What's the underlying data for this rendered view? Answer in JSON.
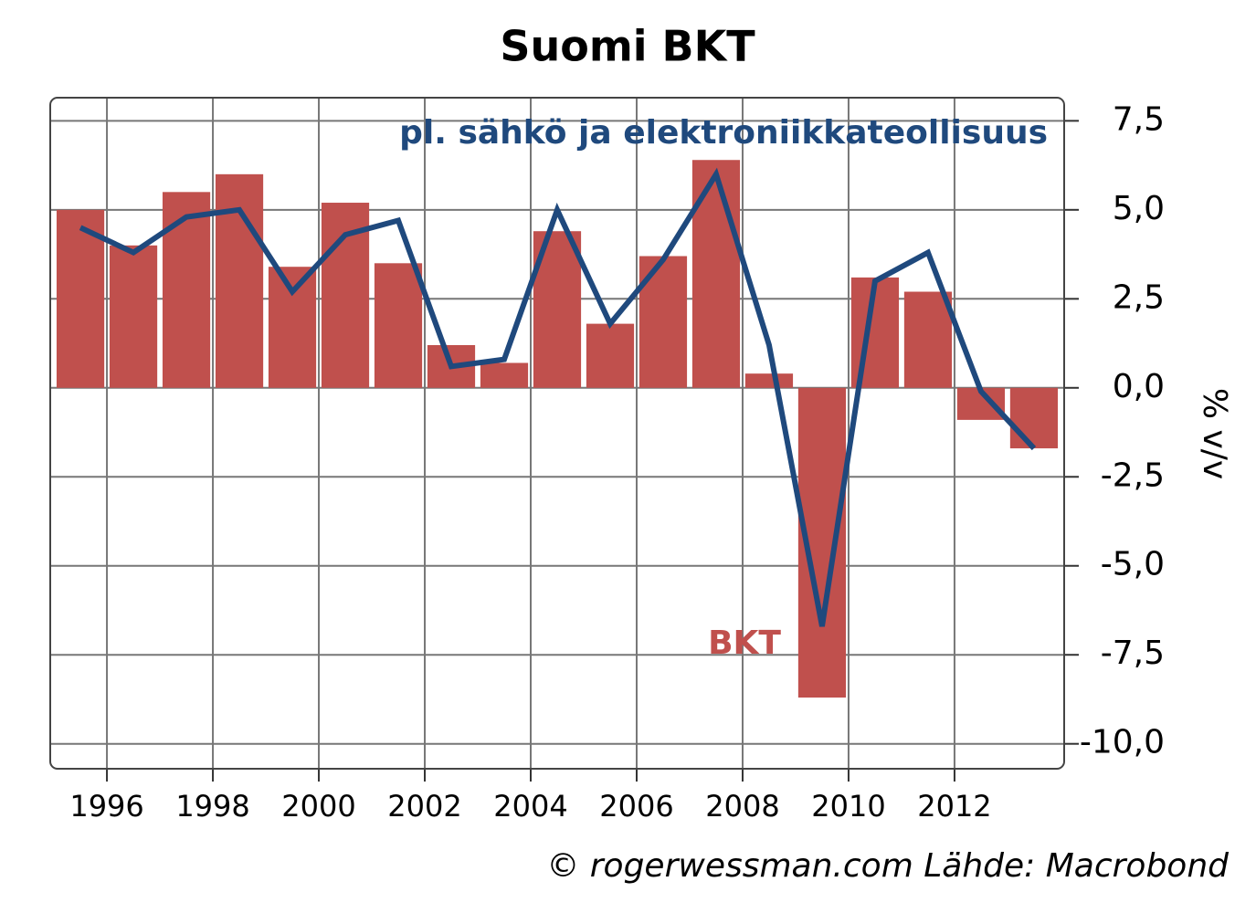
{
  "chart_data": {
    "type": "bar",
    "title": "Suomi BKT",
    "y_label": "% v/v",
    "source": "© rogerwessman.com Lähde: Macrobond",
    "x": [
      1995.5,
      1996.5,
      1997.5,
      1998.5,
      1999.5,
      2000.5,
      2001.5,
      2002.5,
      2003.5,
      2004.5,
      2005.5,
      2006.5,
      2007.5,
      2008.5,
      2009.5,
      2010.5,
      2011.5,
      2012.5,
      2013.5
    ],
    "series": [
      {
        "name": "BKT",
        "type": "bar",
        "color": "#c0504d",
        "values": [
          5.0,
          4.0,
          5.5,
          6.0,
          3.4,
          5.2,
          3.5,
          1.2,
          0.7,
          4.4,
          1.8,
          3.7,
          6.4,
          0.4,
          -8.7,
          3.1,
          2.7,
          -0.9,
          -1.7
        ]
      },
      {
        "name": "pl. sähkö ja elektroniikkateollisuus",
        "type": "line",
        "color": "#1f497d",
        "values": [
          4.5,
          3.8,
          4.8,
          5.0,
          2.7,
          4.3,
          4.7,
          0.6,
          0.8,
          5.0,
          1.8,
          3.6,
          6.0,
          1.2,
          -6.7,
          3.0,
          3.8,
          -0.1,
          -1.7
        ]
      }
    ],
    "xlim": [
      1994.93,
      2014.07
    ],
    "xticks": [
      1996,
      1998,
      2000,
      2002,
      2004,
      2006,
      2008,
      2010,
      2012
    ],
    "ylim": [
      -10.7,
      8.15
    ],
    "yticks": [
      {
        "value": -10,
        "label": "-10,0"
      },
      {
        "value": -7.5,
        "label": "-7,5"
      },
      {
        "value": -5,
        "label": "-5,0"
      },
      {
        "value": -2.5,
        "label": "-2,5"
      },
      {
        "value": 0,
        "label": "0,0"
      },
      {
        "value": 2.5,
        "label": "2,5"
      },
      {
        "value": 5,
        "label": "5,0"
      },
      {
        "value": 7.5,
        "label": "7,5"
      }
    ],
    "grid": true,
    "y_axis_side": "right"
  }
}
